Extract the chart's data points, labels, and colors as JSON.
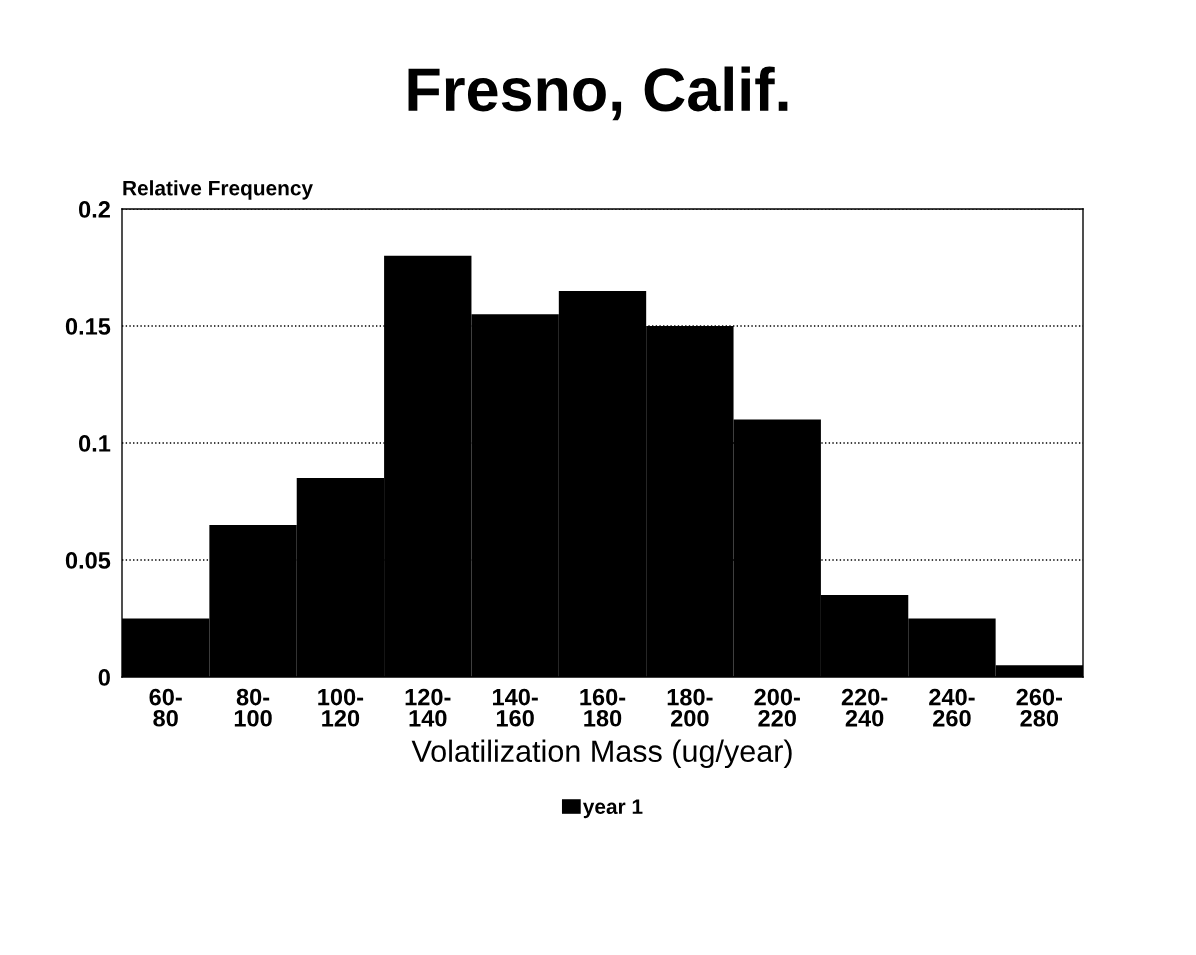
{
  "chart_data": {
    "type": "bar",
    "title": "Fresno, Calif.",
    "ylabel": "Relative Frequency",
    "xlabel": "Volatilization Mass (ug/year)",
    "categories": [
      "60-\n80",
      "80-\n100",
      "100-\n120",
      "120-\n140",
      "140-\n160",
      "160-\n180",
      "180-\n200",
      "200-\n220",
      "220-\n240",
      "240-\n260",
      "260-\n280"
    ],
    "series": [
      {
        "name": "year 1",
        "color": "#000000",
        "values": [
          0.025,
          0.065,
          0.085,
          0.18,
          0.155,
          0.165,
          0.15,
          0.11,
          0.035,
          0.025,
          0.005
        ]
      }
    ],
    "ylim": [
      0,
      0.2
    ],
    "yticks": [
      0,
      0.05,
      0.1,
      0.15,
      0.2
    ],
    "grid": "y",
    "legend": "bottom"
  }
}
